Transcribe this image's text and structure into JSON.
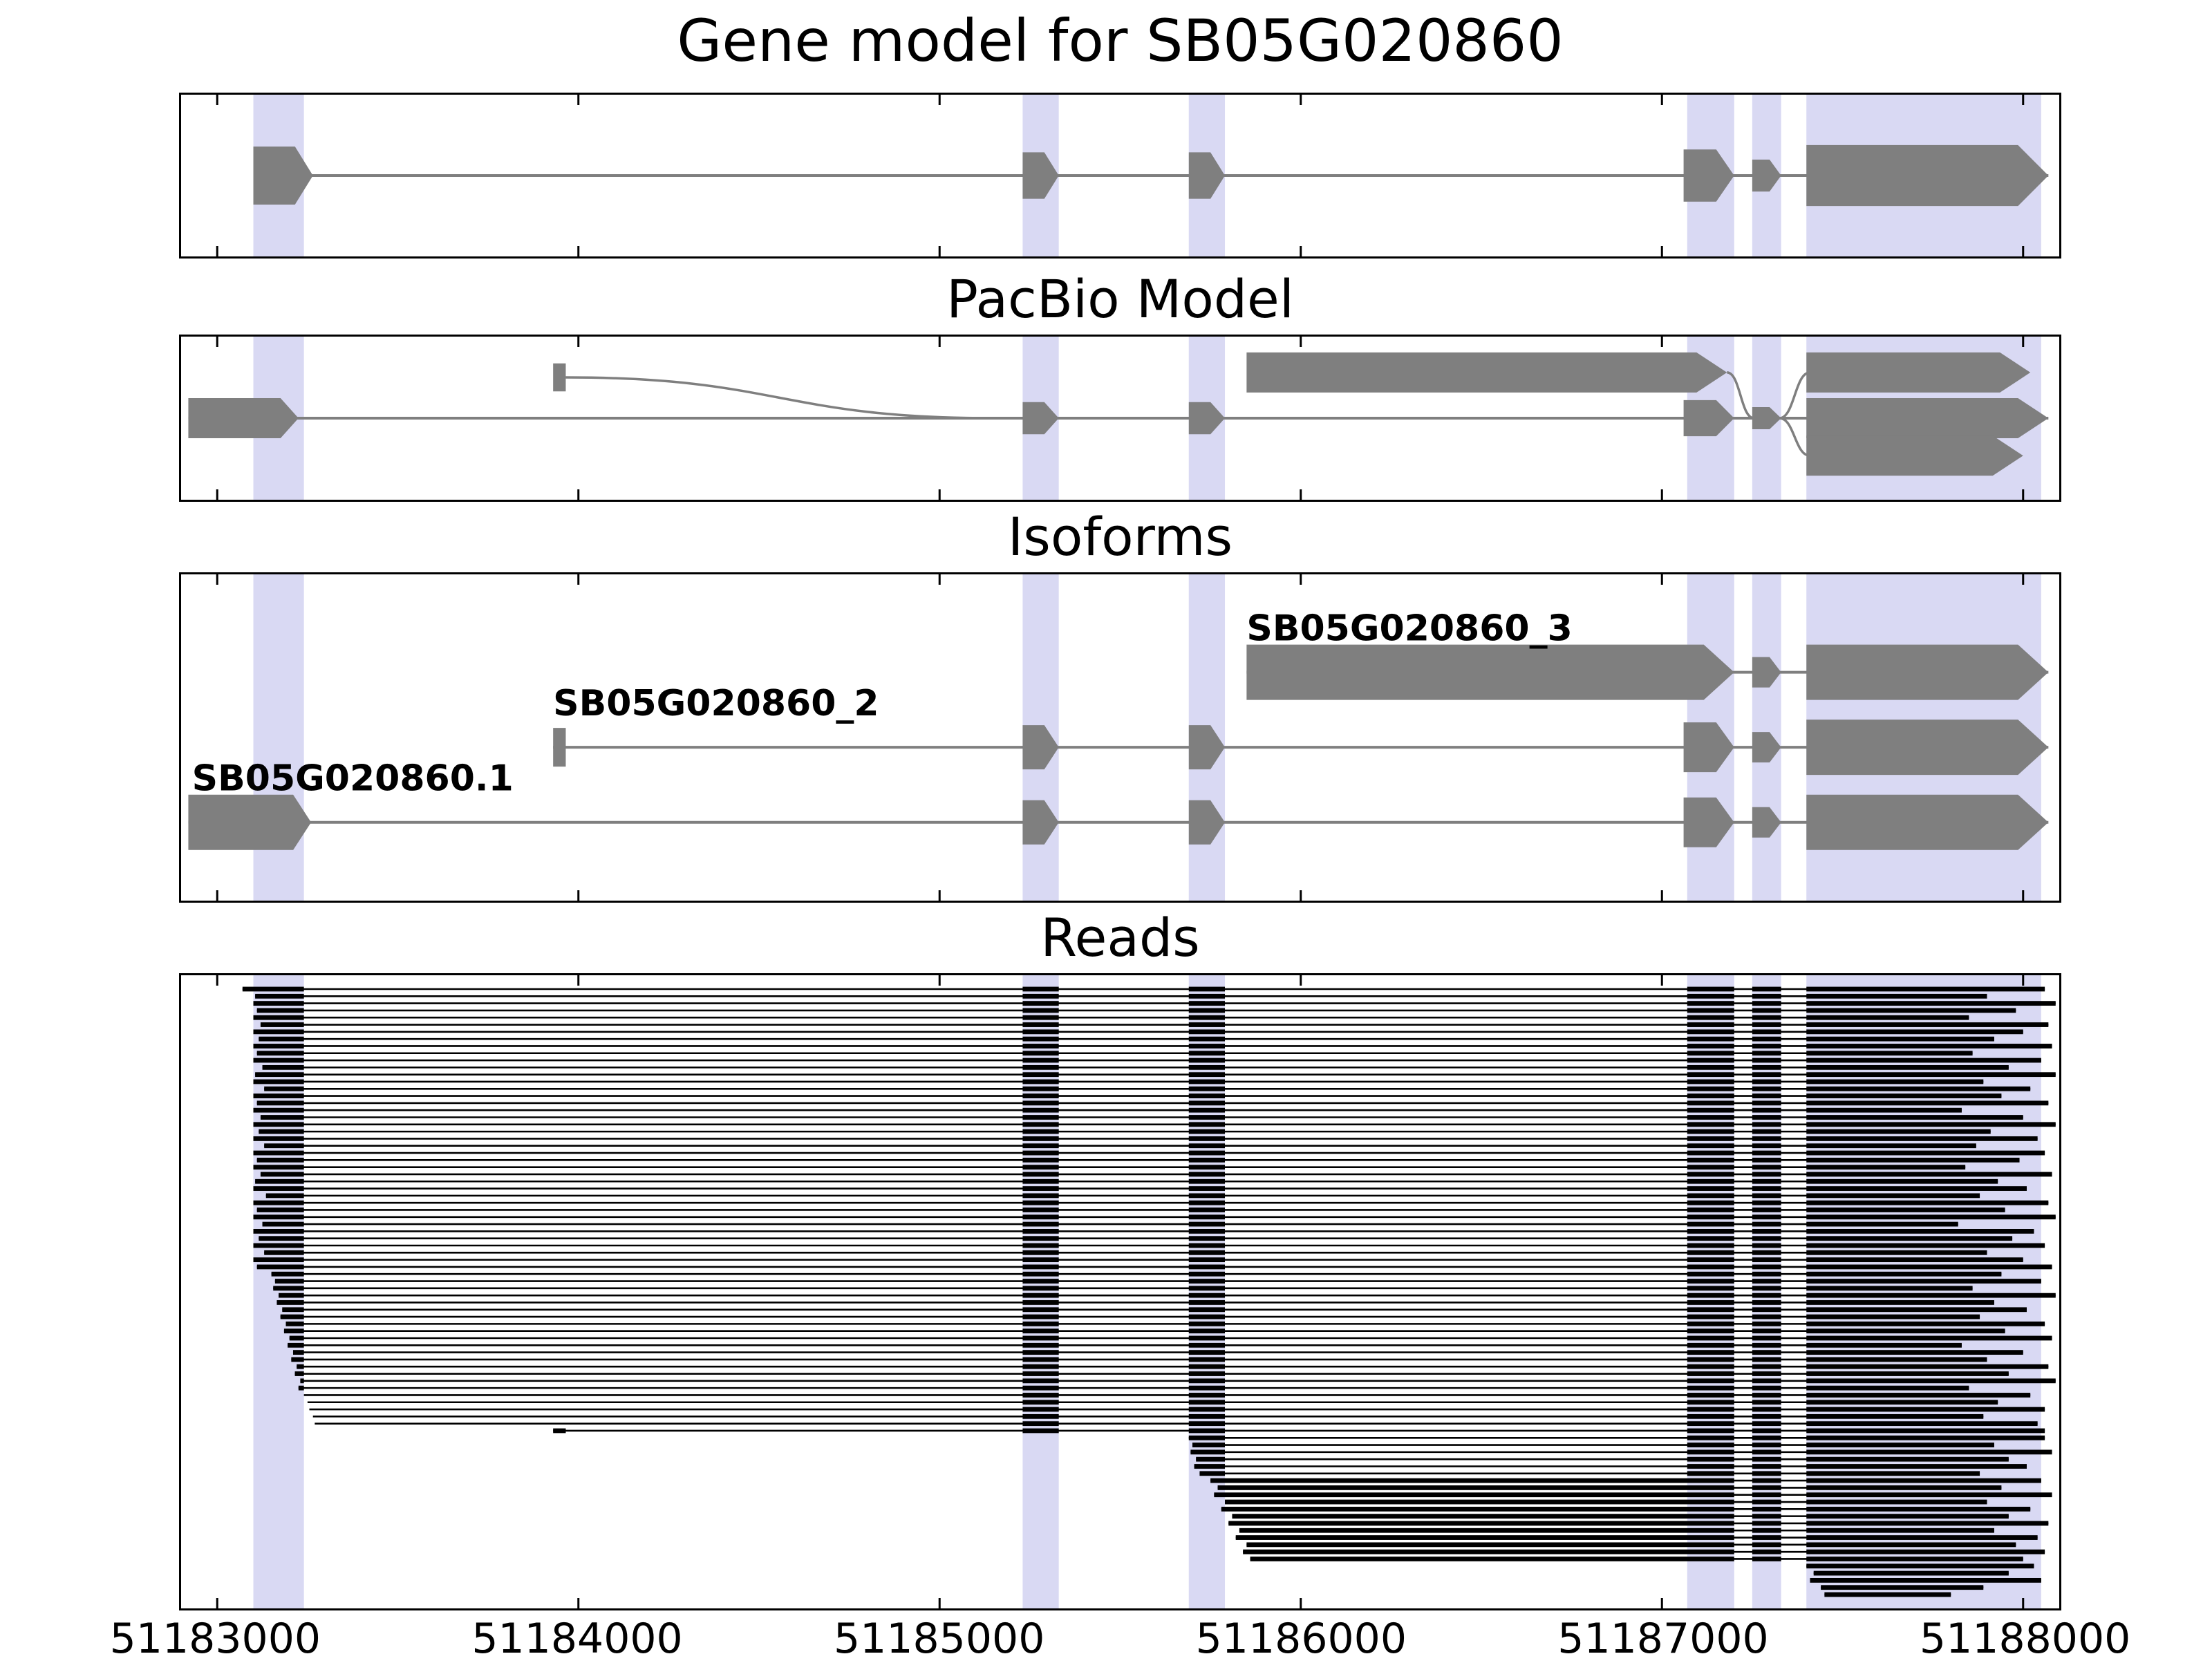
{
  "titles": {
    "gene_model": "Gene model for SB05G020860",
    "pacbio": "PacBio Model",
    "isoforms": "Isoforms",
    "reads": "Reads"
  },
  "colors": {
    "feature": "#7f7f7f",
    "highlight": "#d9d9f3",
    "read": "#000000",
    "axis": "#000000"
  },
  "chart_data": {
    "type": "genome-browser",
    "title": "Gene model for SB05G020860",
    "x_range": [
      51182900,
      51188100
    ],
    "x_ticks": [
      51183000,
      51184000,
      51185000,
      51186000,
      51187000,
      51188000
    ],
    "x_tick_labels": [
      "51183000",
      "51184000",
      "51185000",
      "51186000",
      "51187000",
      "51188000"
    ],
    "highlight_regions": [
      [
        51183100,
        51183240
      ],
      [
        51185230,
        51185330
      ],
      [
        51185690,
        51185790
      ],
      [
        51187070,
        51187200
      ],
      [
        51187250,
        51187330
      ],
      [
        51187400,
        51188050
      ]
    ],
    "gene_model": {
      "span": [
        51183100,
        51188070
      ],
      "exons": [
        {
          "x": [
            51183100,
            51183265
          ],
          "arrow": true,
          "h": 1.0
        },
        {
          "x": [
            51185230,
            51185330
          ],
          "arrow": true,
          "h": 0.8
        },
        {
          "x": [
            51185690,
            51185790
          ],
          "arrow": true,
          "h": 0.8
        },
        {
          "x": [
            51187060,
            51187200
          ],
          "arrow": true,
          "h": 0.9
        },
        {
          "x": [
            51187250,
            51187330
          ],
          "arrow": true,
          "h": 0.55
        },
        {
          "x": [
            51187400,
            51188070
          ],
          "arrow": true,
          "h": 1.05
        }
      ]
    },
    "pacbio": {
      "rows": {
        "top": 0.22,
        "flag": 0.25,
        "mid": 0.5,
        "bot": 0.73
      },
      "lines": [
        {
          "row": "mid",
          "x": [
            51182920,
            51188070
          ]
        }
      ],
      "curves": [
        {
          "from_x": 51183965,
          "from_row": "flag",
          "to_x": 51185150,
          "to_row": "mid"
        },
        {
          "from_x": 51187180,
          "from_row": "top",
          "to_x": 51187255,
          "to_row": "mid"
        },
        {
          "from_x": 51187325,
          "from_row": "mid",
          "to_x": 51187410,
          "to_row": "top"
        },
        {
          "from_x": 51187325,
          "from_row": "mid",
          "to_x": 51187410,
          "to_row": "bot"
        }
      ],
      "exons": [
        {
          "row": "mid",
          "x": [
            51182920,
            51183225
          ],
          "arrow": true,
          "h": 1.0
        },
        {
          "row": "flag",
          "x": [
            51183930,
            51183965
          ],
          "arrow": false,
          "h": 0.7
        },
        {
          "row": "mid",
          "x": [
            51185230,
            51185330
          ],
          "arrow": true,
          "h": 0.8
        },
        {
          "row": "mid",
          "x": [
            51185690,
            51185790
          ],
          "arrow": true,
          "h": 0.8
        },
        {
          "row": "top",
          "x": [
            51185850,
            51187180
          ],
          "arrow": true,
          "h": 1.0
        },
        {
          "row": "mid",
          "x": [
            51187060,
            51187200
          ],
          "arrow": true,
          "h": 0.9
        },
        {
          "row": "mid",
          "x": [
            51187250,
            51187330
          ],
          "arrow": true,
          "h": 0.55
        },
        {
          "row": "top",
          "x": [
            51187400,
            51188020
          ],
          "arrow": true,
          "h": 1.0
        },
        {
          "row": "mid",
          "x": [
            51187400,
            51188070
          ],
          "arrow": true,
          "h": 1.0
        },
        {
          "row": "bot",
          "x": [
            51187400,
            51188000
          ],
          "arrow": true,
          "h": 1.0
        }
      ]
    },
    "isoforms": [
      {
        "label": "SB05G020860_3",
        "row": 0.3,
        "label_x": 51185850,
        "line": [
          51185850,
          51188070
        ],
        "exons": [
          {
            "x": [
              51185850,
              51187200
            ],
            "arrow": true,
            "h": 1.0
          },
          {
            "x": [
              51187250,
              51187330
            ],
            "arrow": true,
            "h": 0.55
          },
          {
            "x": [
              51187400,
              51188070
            ],
            "arrow": true,
            "h": 1.0
          }
        ]
      },
      {
        "label": "SB05G020860_2",
        "row": 0.53,
        "label_x": 51183930,
        "line": [
          51183930,
          51188070
        ],
        "exons": [
          {
            "x": [
              51183930,
              51183965
            ],
            "arrow": false,
            "h": 0.7
          },
          {
            "x": [
              51185230,
              51185330
            ],
            "arrow": true,
            "h": 0.8
          },
          {
            "x": [
              51185690,
              51185790
            ],
            "arrow": true,
            "h": 0.8
          },
          {
            "x": [
              51187060,
              51187200
            ],
            "arrow": true,
            "h": 0.9
          },
          {
            "x": [
              51187250,
              51187330
            ],
            "arrow": true,
            "h": 0.55
          },
          {
            "x": [
              51187400,
              51188070
            ],
            "arrow": true,
            "h": 1.0
          }
        ]
      },
      {
        "label": "SB05G020860.1",
        "row": 0.76,
        "label_x": 51182930,
        "line": [
          51182920,
          51188070
        ],
        "exons": [
          {
            "x": [
              51182920,
              51183260
            ],
            "arrow": true,
            "h": 1.0
          },
          {
            "x": [
              51185230,
              51185330
            ],
            "arrow": true,
            "h": 0.8
          },
          {
            "x": [
              51185690,
              51185790
            ],
            "arrow": true,
            "h": 0.8
          },
          {
            "x": [
              51187060,
              51187200
            ],
            "arrow": true,
            "h": 0.9
          },
          {
            "x": [
              51187250,
              51187330
            ],
            "arrow": true,
            "h": 0.55
          },
          {
            "x": [
              51187400,
              51188070
            ],
            "arrow": true,
            "h": 1.0
          }
        ]
      }
    ],
    "reads": {
      "types": {
        "0": {
          "blocks": [
            [
              "S",
              51183240
            ],
            [
              51185230,
              51185330
            ],
            [
              51185690,
              51185790
            ],
            [
              51187070,
              51187200
            ],
            [
              51187250,
              51187330
            ],
            [
              51187400,
              "E"
            ]
          ]
        },
        "1": {
          "blocks": [
            [
              "S",
              51187200
            ],
            [
              51187250,
              51187330
            ],
            [
              51187400,
              "E"
            ]
          ]
        },
        "2": {
          "blocks": [
            [
              "S",
              "E"
            ]
          ]
        },
        "3": {
          "blocks": [
            [
              "S",
              "S+35"
            ],
            [
              51185230,
              51185330
            ],
            [
              51185690,
              51185790
            ],
            [
              51187070,
              51187200
            ],
            [
              51187250,
              51187330
            ],
            [
              51187400,
              "E"
            ]
          ]
        },
        "4": {
          "blocks": [
            [
              "S",
              51185790
            ],
            [
              51187070,
              51187200
            ],
            [
              51187250,
              51187330
            ],
            [
              51187400,
              "E"
            ]
          ]
        }
      },
      "rows": [
        [
          51183070,
          51188060,
          0
        ],
        [
          51183105,
          51187900,
          0
        ],
        [
          51183100,
          51188090,
          0
        ],
        [
          51183110,
          51187980,
          0
        ],
        [
          51183100,
          51187850,
          0
        ],
        [
          51183120,
          51188070,
          0
        ],
        [
          51183100,
          51188000,
          0
        ],
        [
          51183115,
          51187920,
          0
        ],
        [
          51183100,
          51188080,
          0
        ],
        [
          51183110,
          51187860,
          0
        ],
        [
          51183100,
          51188050,
          0
        ],
        [
          51183125,
          51187960,
          0
        ],
        [
          51183105,
          51188090,
          0
        ],
        [
          51183100,
          51187890,
          0
        ],
        [
          51183130,
          51188020,
          0
        ],
        [
          51183100,
          51187940,
          0
        ],
        [
          51183110,
          51188070,
          0
        ],
        [
          51183100,
          51187830,
          0
        ],
        [
          51183120,
          51188000,
          0
        ],
        [
          51183100,
          51188090,
          0
        ],
        [
          51183115,
          51187910,
          0
        ],
        [
          51183100,
          51188040,
          0
        ],
        [
          51183130,
          51187870,
          0
        ],
        [
          51183100,
          51188060,
          0
        ],
        [
          51183110,
          51187990,
          0
        ],
        [
          51183100,
          51187840,
          0
        ],
        [
          51183120,
          51188080,
          0
        ],
        [
          51183105,
          51187930,
          0
        ],
        [
          51183100,
          51188010,
          0
        ],
        [
          51183135,
          51187880,
          0
        ],
        [
          51183100,
          51188070,
          0
        ],
        [
          51183110,
          51187950,
          0
        ],
        [
          51183100,
          51188090,
          0
        ],
        [
          51183125,
          51187820,
          0
        ],
        [
          51183100,
          51188030,
          0
        ],
        [
          51183115,
          51187970,
          0
        ],
        [
          51183100,
          51188060,
          0
        ],
        [
          51183130,
          51187900,
          0
        ],
        [
          51183100,
          51188000,
          0
        ],
        [
          51183110,
          51188080,
          0
        ],
        [
          51183150,
          51187940,
          0
        ],
        [
          51183160,
          51188050,
          0
        ],
        [
          51183155,
          51187860,
          0
        ],
        [
          51183170,
          51188090,
          0
        ],
        [
          51183165,
          51187920,
          0
        ],
        [
          51183180,
          51188010,
          0
        ],
        [
          51183175,
          51187880,
          0
        ],
        [
          51183190,
          51188060,
          0
        ],
        [
          51183185,
          51187950,
          0
        ],
        [
          51183200,
          51188080,
          0
        ],
        [
          51183195,
          51187830,
          0
        ],
        [
          51183210,
          51188000,
          0
        ],
        [
          51183205,
          51187900,
          0
        ],
        [
          51183220,
          51188070,
          0
        ],
        [
          51183215,
          51187960,
          0
        ],
        [
          51183230,
          51188090,
          0
        ],
        [
          51183225,
          51187850,
          0
        ],
        [
          51183240,
          51188020,
          0
        ],
        [
          51183250,
          51187930,
          0
        ],
        [
          51183255,
          51188060,
          0
        ],
        [
          51183265,
          51187890,
          0
        ],
        [
          51183270,
          51188040,
          0
        ],
        [
          51183930,
          51188060,
          3
        ],
        [
          51185690,
          51188060,
          4
        ],
        [
          51185700,
          51187920,
          4
        ],
        [
          51185695,
          51188080,
          4
        ],
        [
          51185710,
          51187960,
          4
        ],
        [
          51185705,
          51188010,
          4
        ],
        [
          51185720,
          51187880,
          4
        ],
        [
          51185750,
          51188050,
          1
        ],
        [
          51185770,
          51187940,
          1
        ],
        [
          51185760,
          51188080,
          1
        ],
        [
          51185790,
          51187900,
          1
        ],
        [
          51185780,
          51188020,
          1
        ],
        [
          51185810,
          51187960,
          1
        ],
        [
          51185800,
          51188070,
          1
        ],
        [
          51185830,
          51187920,
          1
        ],
        [
          51185820,
          51188040,
          1
        ],
        [
          51185850,
          51187980,
          1
        ],
        [
          51185840,
          51188060,
          1
        ],
        [
          51185860,
          51188000,
          1
        ],
        [
          51187400,
          51188030,
          2
        ],
        [
          51187420,
          51187960,
          2
        ],
        [
          51187410,
          51188050,
          2
        ],
        [
          51187440,
          51187890,
          2
        ],
        [
          51187450,
          51187800,
          2
        ]
      ]
    }
  }
}
